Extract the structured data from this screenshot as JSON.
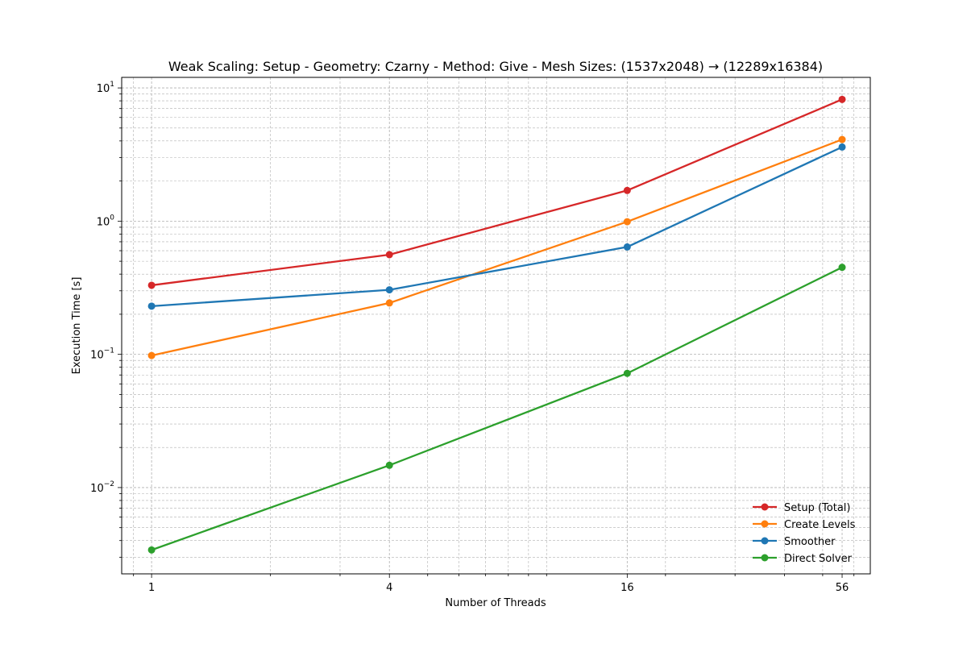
{
  "chart_data": {
    "type": "line",
    "title": "Weak Scaling: Setup - Geometry: Czarny - Method: Give - Mesh Sizes: (1537x2048) → (12289x16384)",
    "xlabel": "Number of Threads",
    "ylabel": "Execution Time [s]",
    "x": [
      1,
      4,
      16,
      56
    ],
    "x_tick_labels": [
      "1",
      "4",
      "16",
      "56"
    ],
    "x_scale": "log",
    "y_scale": "log",
    "xlim": [
      0.84,
      66
    ],
    "ylim": [
      0.00225,
      12
    ],
    "y_major_ticks": [
      {
        "value": 0.01,
        "base": "10",
        "exp": "−2"
      },
      {
        "value": 0.1,
        "base": "10",
        "exp": "−1"
      },
      {
        "value": 1,
        "base": "10",
        "exp": "0"
      },
      {
        "value": 10,
        "base": "10",
        "exp": "1"
      }
    ],
    "grid": true,
    "legend_position": "lower-right",
    "series": [
      {
        "name": "Setup (Total)",
        "color": "#d62728",
        "values": [
          0.33,
          0.56,
          1.7,
          8.2
        ]
      },
      {
        "name": "Create Levels",
        "color": "#ff7f0e",
        "values": [
          0.098,
          0.243,
          0.99,
          4.1
        ]
      },
      {
        "name": "Smoother",
        "color": "#1f77b4",
        "values": [
          0.23,
          0.305,
          0.64,
          3.6
        ]
      },
      {
        "name": "Direct Solver",
        "color": "#2ca02c",
        "values": [
          0.0034,
          0.0147,
          0.072,
          0.45
        ]
      }
    ]
  }
}
